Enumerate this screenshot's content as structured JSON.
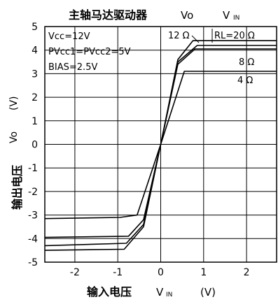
{
  "chart_data": {
    "type": "line",
    "title": "主轴马达驱动器",
    "title_vo": "Vo",
    "title_vin_main": "V",
    "title_vin_sub": "IN",
    "ylabel_cn": "输出电压",
    "ylabel_vo": "Vo",
    "ylabel_unit": "(V)",
    "xlabel_cn": "输入电压",
    "xlabel_v": "V",
    "xlabel_sub": "IN",
    "xlabel_unit": "(V)",
    "xlim": [
      -2.7,
      2.7
    ],
    "ylim": [
      -5,
      5
    ],
    "grid": true,
    "x_ticks": [
      "-2",
      "-1",
      "0",
      "1",
      "2"
    ],
    "y_ticks": [
      "5",
      "4",
      "3",
      "2",
      "1",
      "0",
      "-1",
      "-2",
      "-3",
      "-4",
      "-5"
    ],
    "conditions": [
      "Vcc=12V",
      "PVcc1=PVcc2=5V",
      "BIAS=2.5V"
    ],
    "series": [
      {
        "name": "12 Ω",
        "x": [
          -2.7,
          -0.85,
          -0.4,
          0.0,
          0.4,
          0.75,
          2.7
        ],
        "y": [
          -4.5,
          -4.45,
          -3.5,
          0.0,
          3.6,
          4.4,
          4.4
        ]
      },
      {
        "name": "RL=20 Ω",
        "x": [
          -2.7,
          -0.8,
          -0.4,
          0.0,
          0.4,
          0.85,
          2.7
        ],
        "y": [
          -4.3,
          -4.2,
          -3.4,
          0.0,
          3.5,
          4.2,
          4.2
        ]
      },
      {
        "name": "8 Ω",
        "x": [
          -2.7,
          -0.75,
          -0.4,
          0.0,
          0.4,
          0.8,
          2.7
        ],
        "y": [
          -3.95,
          -3.9,
          -3.2,
          0.0,
          3.4,
          4.05,
          4.05
        ]
      },
      {
        "name": "4 Ω",
        "x": [
          -2.7,
          -0.95,
          -0.55,
          0.0,
          0.55,
          2.7
        ],
        "y": [
          -3.15,
          -3.1,
          -3.0,
          0.0,
          3.1,
          3.1
        ]
      }
    ]
  }
}
